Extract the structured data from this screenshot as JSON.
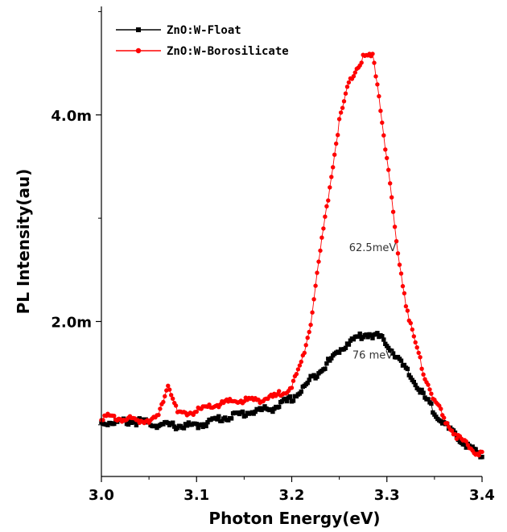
{
  "chart_data": {
    "type": "scatter",
    "xlabel": "Photon Energy(eV)",
    "ylabel": "PL Intensity(au)",
    "xlim": [
      3.0,
      3.4
    ],
    "ylim": [
      0.0005,
      0.00505
    ],
    "xticks": [
      3.0,
      3.1,
      3.2,
      3.3,
      3.4
    ],
    "xtick_labels": [
      "3.0",
      "3.1",
      "3.2",
      "3.3",
      "3.4"
    ],
    "yticks": [
      0.002,
      0.004
    ],
    "ytick_labels": [
      "2.0m",
      "4.0m"
    ],
    "grid": false,
    "legend_position": "top-left",
    "series": [
      {
        "name": "ZnO:W-Float",
        "color": "#000000",
        "marker": "square",
        "x": [
          3.0,
          3.02,
          3.04,
          3.06,
          3.08,
          3.1,
          3.12,
          3.14,
          3.16,
          3.18,
          3.2,
          3.21,
          3.22,
          3.23,
          3.24,
          3.25,
          3.26,
          3.27,
          3.28,
          3.29,
          3.3,
          3.31,
          3.32,
          3.33,
          3.34,
          3.35,
          3.36,
          3.37,
          3.38,
          3.39,
          3.4
        ],
        "y": [
          0.00102,
          0.00103,
          0.00103,
          0.001,
          0.00099,
          0.00099,
          0.00105,
          0.00109,
          0.00113,
          0.00116,
          0.00125,
          0.00133,
          0.00144,
          0.00153,
          0.00162,
          0.00172,
          0.0018,
          0.00185,
          0.00188,
          0.00186,
          0.00179,
          0.00166,
          0.00153,
          0.0014,
          0.00126,
          0.00113,
          0.00101,
          0.00091,
          0.00083,
          0.00076,
          0.00069
        ]
      },
      {
        "name": "ZnO:W-Borosilicate",
        "color": "#ff0000",
        "marker": "circle",
        "x": [
          3.0,
          3.02,
          3.04,
          3.06,
          3.07,
          3.08,
          3.1,
          3.12,
          3.14,
          3.16,
          3.18,
          3.2,
          3.21,
          3.22,
          3.23,
          3.24,
          3.25,
          3.26,
          3.27,
          3.275,
          3.28,
          3.285,
          3.29,
          3.3,
          3.31,
          3.32,
          3.33,
          3.34,
          3.35,
          3.36,
          3.37,
          3.38,
          3.39,
          3.4
        ],
        "y": [
          0.00108,
          0.00106,
          0.00104,
          0.00107,
          0.00141,
          0.0011,
          0.00113,
          0.00119,
          0.00123,
          0.00124,
          0.00126,
          0.00137,
          0.00159,
          0.002,
          0.00268,
          0.00331,
          0.00394,
          0.0043,
          0.00448,
          0.00455,
          0.00457,
          0.00456,
          0.00431,
          0.00357,
          0.00277,
          0.00218,
          0.00177,
          0.00147,
          0.00124,
          0.00106,
          0.00093,
          0.00083,
          0.00076,
          0.00071
        ]
      }
    ],
    "annotations": [
      {
        "text": "62.5meV",
        "x": 3.285,
        "y": 0.00268
      },
      {
        "text": "76 meV",
        "x": 3.285,
        "y": 0.00164
      }
    ]
  }
}
